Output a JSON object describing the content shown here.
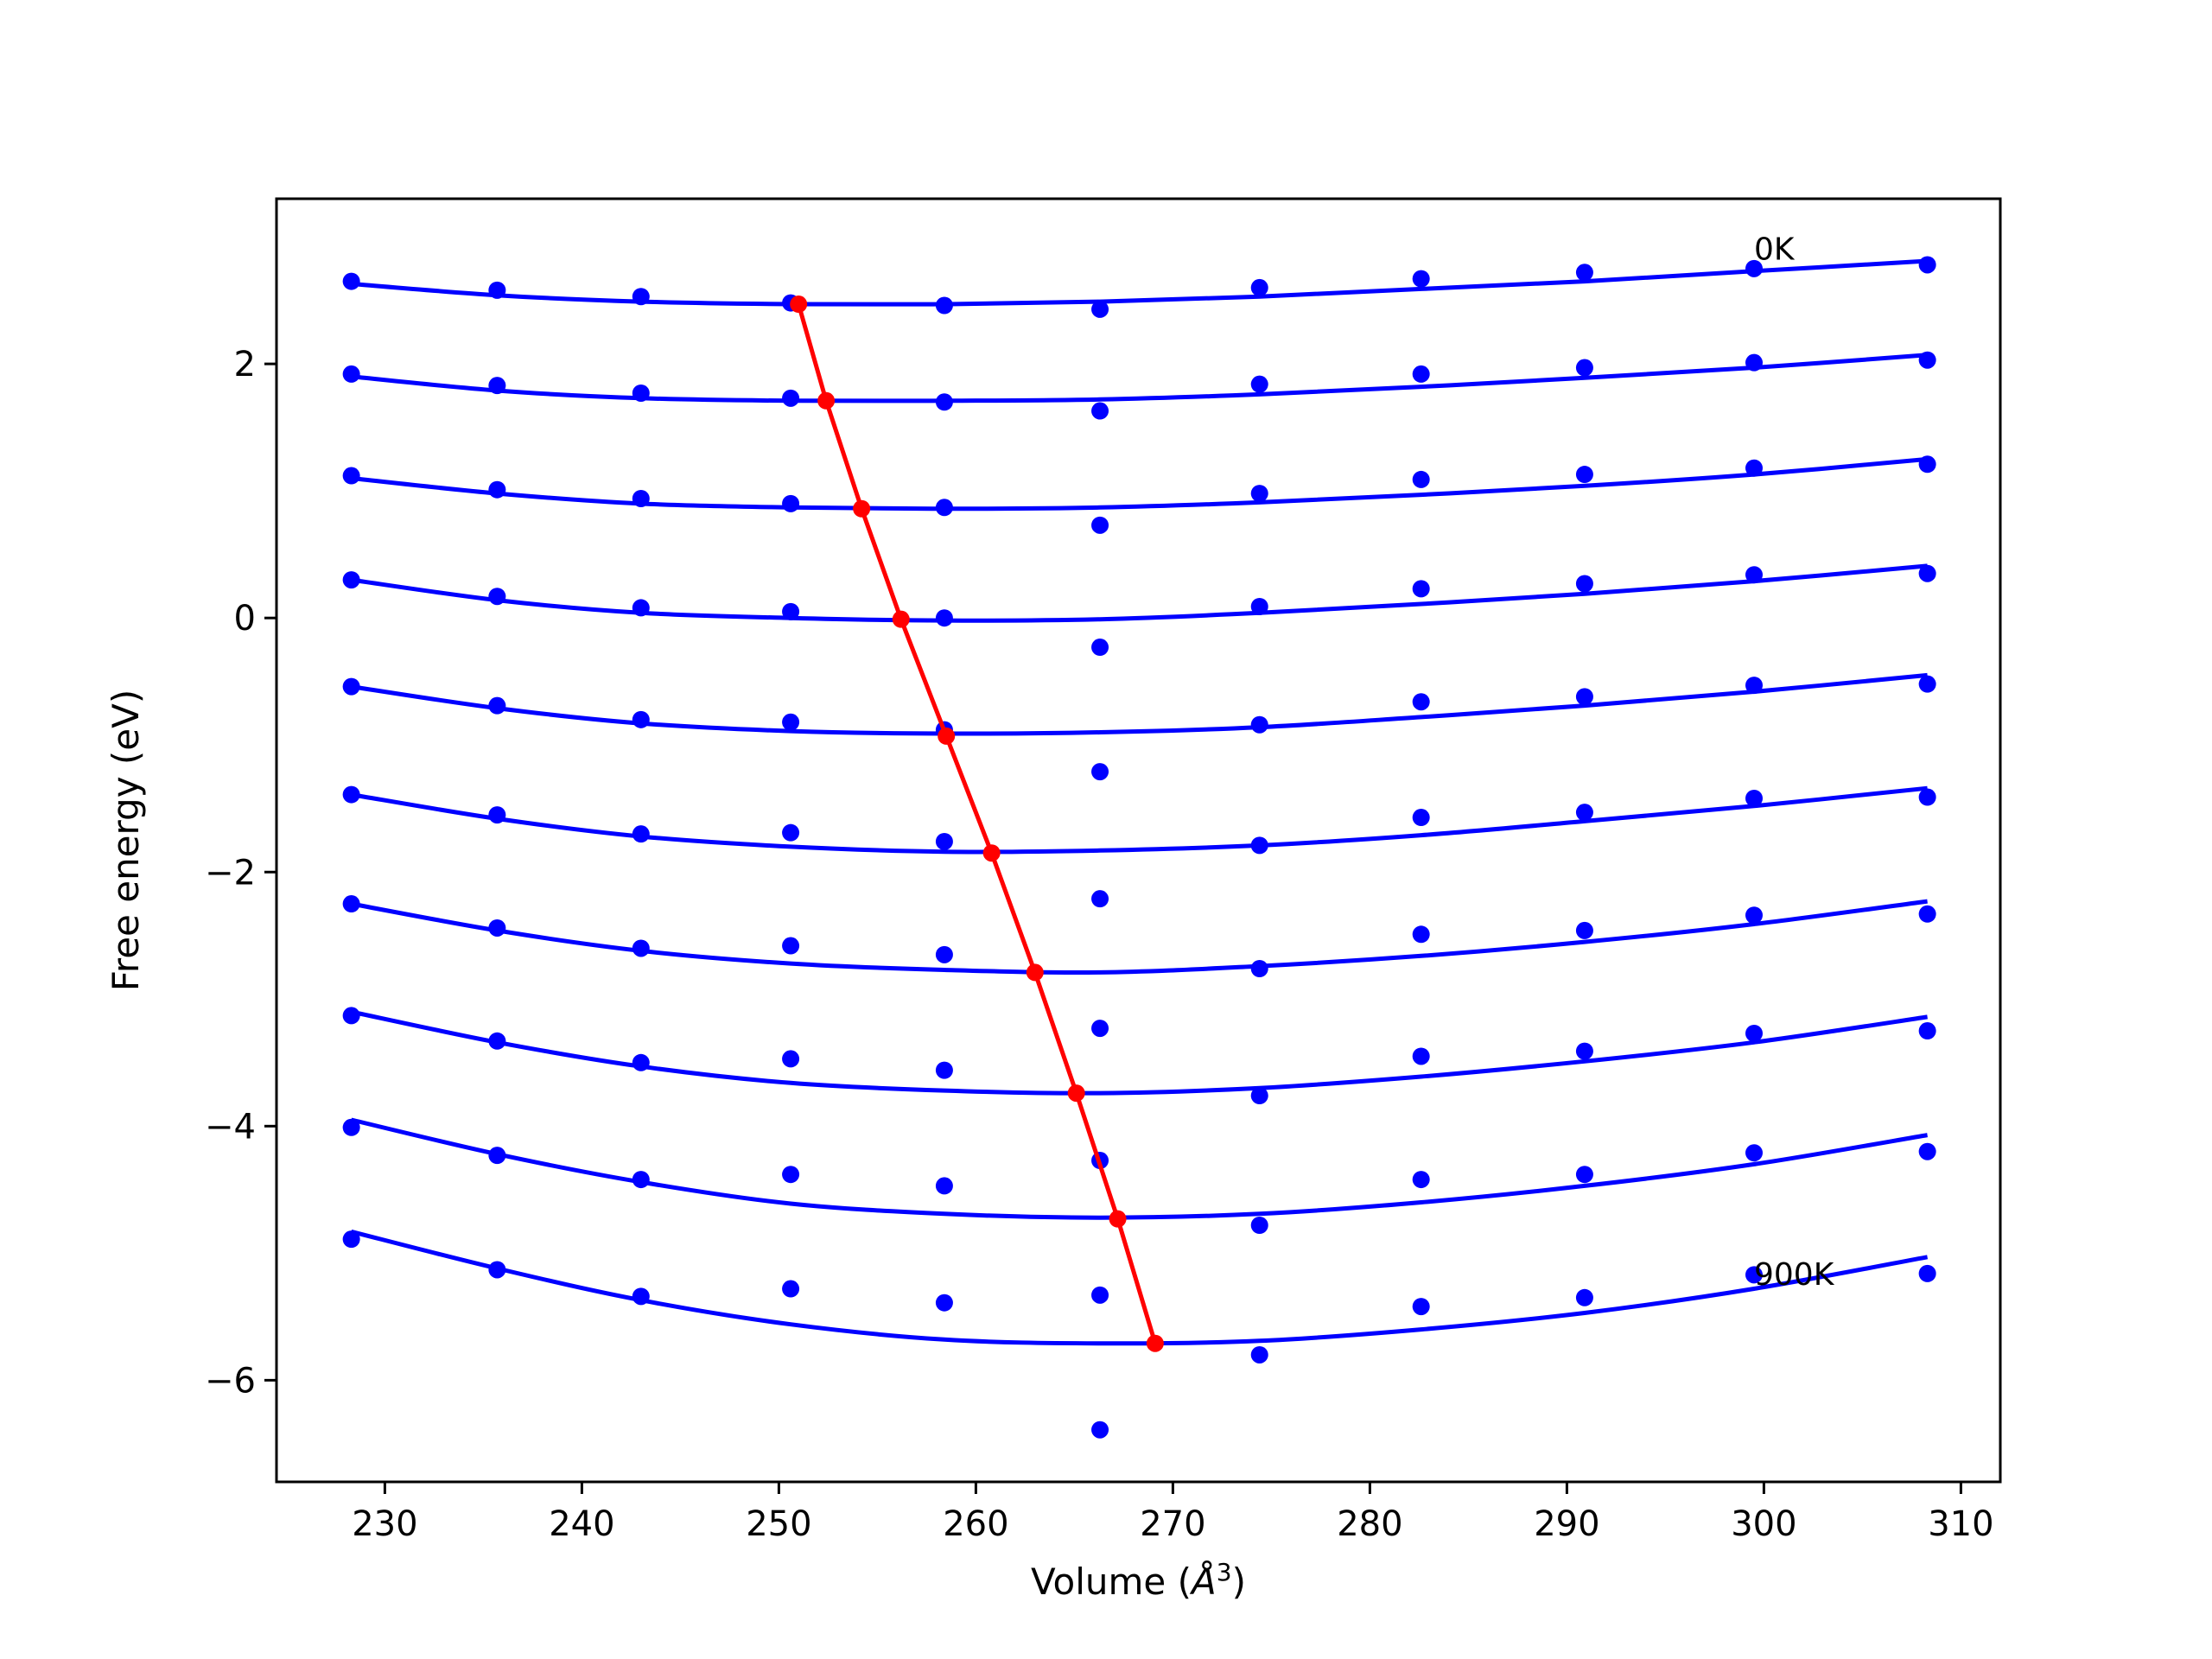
{
  "chart_data": {
    "type": "line",
    "title": "",
    "xlabel": "Volume (",
    "xlabel_unit": "Å",
    "xlabel_exp": "3",
    "xlabel_close": ")",
    "ylabel": "Free energy (eV)",
    "xlim": [
      224.5,
      312
    ],
    "ylim": [
      -6.8,
      3.3
    ],
    "xticks": [
      230,
      240,
      250,
      260,
      270,
      280,
      290,
      300,
      310
    ],
    "yticks": [
      -6,
      -4,
      -2,
      0,
      2
    ],
    "xtick_labels": [
      "230",
      "240",
      "250",
      "260",
      "270",
      "280",
      "290",
      "300",
      "310"
    ],
    "ytick_labels": [
      "−6",
      "−4",
      "−2",
      "0",
      "2"
    ],
    "grid": false,
    "colors": {
      "points": "#0000ff",
      "curves": "#0000ff",
      "minimum_path": "#ff0000"
    },
    "x": [
      228.3,
      235.7,
      243.0,
      250.6,
      258.4,
      266.3,
      274.4,
      282.6,
      290.9,
      299.5,
      308.3
    ],
    "series": [
      {
        "points": [
          2.65,
          2.58,
          2.53,
          2.48,
          2.46,
          2.43,
          2.6,
          2.67,
          2.72,
          2.75,
          2.78
        ],
        "curve": [
          2.63,
          2.54,
          2.49,
          2.47,
          2.47,
          2.49,
          2.53,
          2.59,
          2.65,
          2.73,
          2.81
        ]
      },
      {
        "points": [
          1.92,
          1.83,
          1.77,
          1.73,
          1.7,
          1.63,
          1.84,
          1.92,
          1.97,
          2.01,
          2.03
        ],
        "curve": [
          1.9,
          1.79,
          1.73,
          1.71,
          1.71,
          1.72,
          1.76,
          1.82,
          1.89,
          1.97,
          2.07
        ]
      },
      {
        "points": [
          1.12,
          1.01,
          0.94,
          0.9,
          0.87,
          0.73,
          0.98,
          1.09,
          1.13,
          1.18,
          1.21
        ],
        "curve": [
          1.1,
          0.98,
          0.9,
          0.87,
          0.86,
          0.87,
          0.91,
          0.97,
          1.04,
          1.13,
          1.25
        ]
      },
      {
        "points": [
          0.3,
          0.17,
          0.08,
          0.05,
          0.0,
          -0.23,
          0.09,
          0.23,
          0.27,
          0.34,
          0.35
        ],
        "curve": [
          0.3,
          0.14,
          0.04,
          0.0,
          -0.02,
          -0.01,
          0.04,
          0.11,
          0.19,
          0.29,
          0.41
        ]
      },
      {
        "points": [
          -0.54,
          -0.69,
          -0.8,
          -0.82,
          -0.88,
          -1.21,
          -0.84,
          -0.66,
          -0.62,
          -0.53,
          -0.52
        ],
        "curve": [
          -0.54,
          -0.71,
          -0.83,
          -0.89,
          -0.91,
          -0.9,
          -0.86,
          -0.78,
          -0.69,
          -0.58,
          -0.45
        ]
      },
      {
        "points": [
          -1.39,
          -1.55,
          -1.7,
          -1.69,
          -1.76,
          -2.21,
          -1.79,
          -1.57,
          -1.53,
          -1.42,
          -1.41
        ],
        "curve": [
          -1.39,
          -1.58,
          -1.72,
          -1.8,
          -1.84,
          -1.83,
          -1.79,
          -1.71,
          -1.6,
          -1.48,
          -1.34
        ]
      },
      {
        "points": [
          -2.25,
          -2.44,
          -2.6,
          -2.58,
          -2.65,
          -3.23,
          -2.76,
          -2.49,
          -2.46,
          -2.34,
          -2.33
        ],
        "curve": [
          -2.25,
          -2.46,
          -2.62,
          -2.72,
          -2.77,
          -2.79,
          -2.74,
          -2.66,
          -2.55,
          -2.41,
          -2.23
        ]
      },
      {
        "points": [
          -3.13,
          -3.33,
          -3.5,
          -3.47,
          -3.56,
          -4.27,
          -3.76,
          -3.45,
          -3.41,
          -3.27,
          -3.25
        ],
        "curve": [
          -3.1,
          -3.34,
          -3.53,
          -3.66,
          -3.72,
          -3.74,
          -3.7,
          -3.61,
          -3.49,
          -3.34,
          -3.14
        ]
      },
      {
        "points": [
          -4.01,
          -4.23,
          -4.42,
          -4.38,
          -4.47,
          -5.33,
          -4.78,
          -4.42,
          -4.38,
          -4.21,
          -4.2
        ],
        "curve": [
          -3.95,
          -4.22,
          -4.44,
          -4.61,
          -4.69,
          -4.72,
          -4.69,
          -4.6,
          -4.47,
          -4.3,
          -4.07
        ]
      },
      {
        "points": [
          -4.89,
          -5.13,
          -5.34,
          -5.28,
          -5.39,
          -6.39,
          -5.8,
          -5.42,
          -5.35,
          -5.17,
          -5.16
        ],
        "curve": [
          -4.83,
          -5.12,
          -5.37,
          -5.56,
          -5.68,
          -5.71,
          -5.69,
          -5.6,
          -5.47,
          -5.28,
          -5.03
        ]
      }
    ],
    "minimum_path": {
      "x": [
        251.0,
        252.4,
        254.2,
        256.2,
        258.5,
        260.8,
        263.0,
        265.1,
        267.2,
        269.1
      ],
      "y": [
        2.47,
        1.71,
        0.86,
        -0.01,
        -0.93,
        -1.85,
        -2.79,
        -3.74,
        -4.73,
        -5.71
      ]
    },
    "annotations": [
      {
        "text": "0K",
        "x": 299.5,
        "y": 2.82
      },
      {
        "text": "900K",
        "x": 299.5,
        "y": -5.25
      }
    ]
  }
}
